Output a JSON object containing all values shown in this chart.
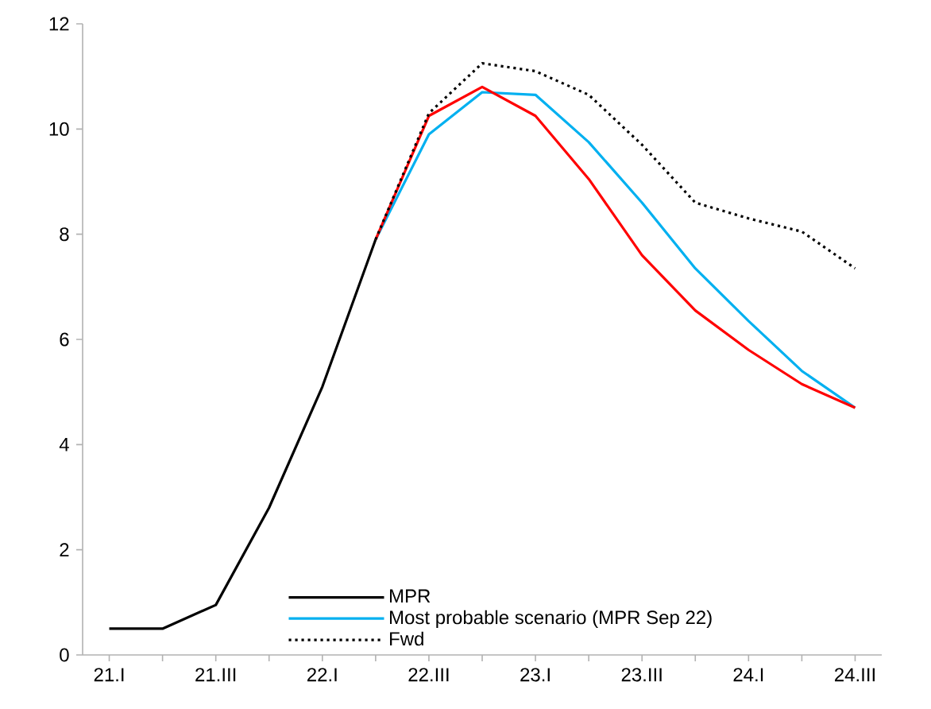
{
  "chart_data": {
    "type": "line",
    "categories": [
      "21.I",
      null,
      "21.III",
      null,
      "22.I",
      null,
      "22.III",
      null,
      "23.I",
      null,
      "23.III",
      null,
      "24.I",
      null,
      "24.III"
    ],
    "series": [
      {
        "name": "MPR",
        "color": "#000000",
        "values": [
          0.5,
          0.5,
          0.95,
          2.8,
          5.1,
          7.9,
          null,
          null,
          null,
          null,
          null,
          null,
          null,
          null,
          null
        ]
      },
      {
        "name": "Most probable scenario (MPR Sep 22)",
        "color": "#00b0f0",
        "values": [
          null,
          null,
          null,
          null,
          null,
          7.9,
          9.9,
          10.7,
          10.65,
          9.75,
          8.6,
          7.35,
          6.35,
          5.4,
          4.7
        ]
      },
      {
        "color": "#ff0000",
        "values": [
          null,
          null,
          null,
          null,
          null,
          7.9,
          10.25,
          10.8,
          10.25,
          9.05,
          7.6,
          6.55,
          5.8,
          5.15,
          4.7
        ]
      },
      {
        "name": "Fwd",
        "color": "#000000",
        "line_style": "dotted",
        "values": [
          null,
          null,
          null,
          null,
          null,
          7.9,
          10.3,
          11.25,
          11.1,
          10.65,
          9.7,
          8.6,
          8.3,
          8.05,
          7.35
        ]
      }
    ],
    "ylim": [
      0,
      12
    ],
    "yticks": [
      0,
      2,
      4,
      6,
      8,
      10,
      12
    ],
    "grid": false,
    "legend": "bottom",
    "marker": "none",
    "line_style": "solid"
  }
}
